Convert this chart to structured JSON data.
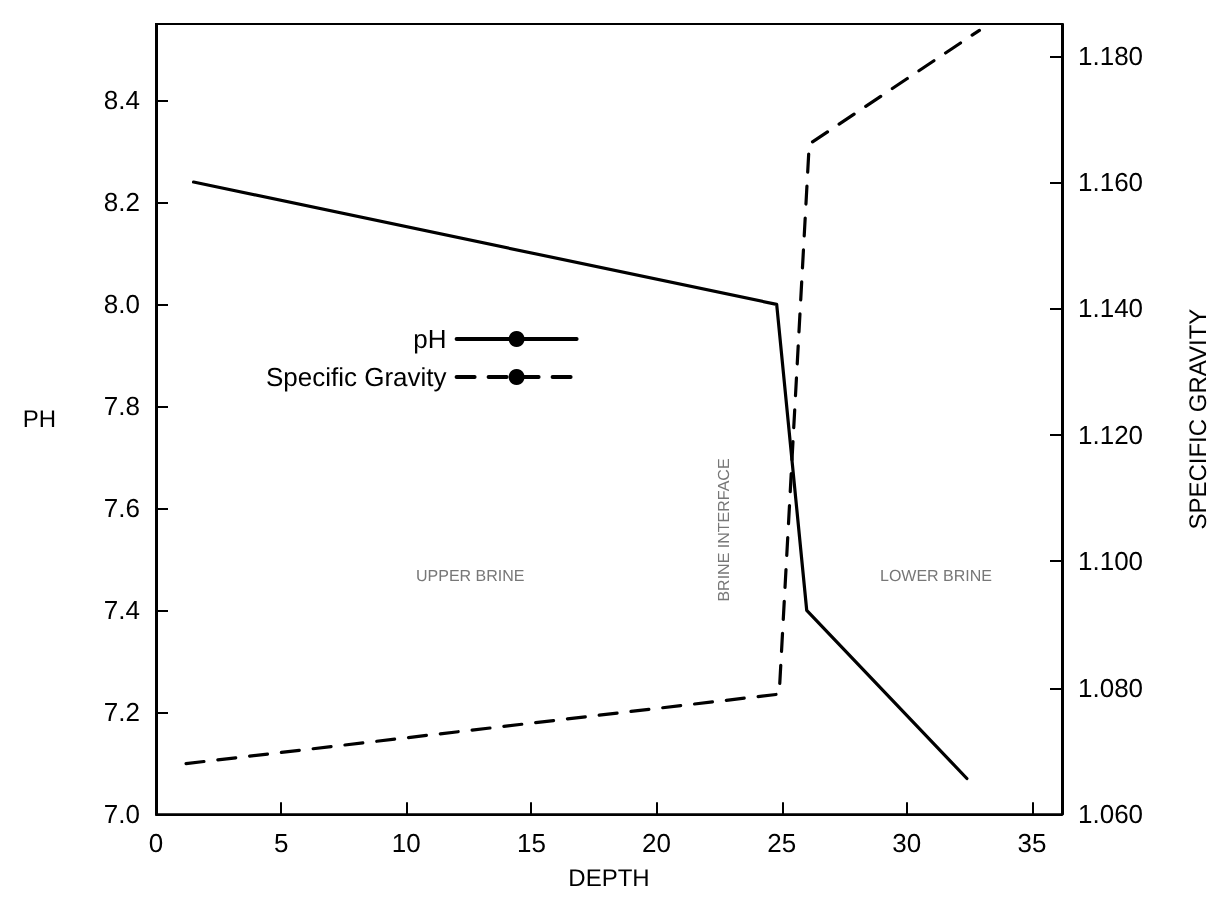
{
  "chart_data": {
    "type": "line",
    "xlabel": "DEPTH",
    "ylabel": "PH",
    "y2label": "SPECIFIC GRAVITY",
    "xlim": [
      0,
      36.2
    ],
    "xticks": [
      0,
      5,
      10,
      15,
      20,
      25,
      30,
      35
    ],
    "ylim": [
      7.0,
      8.55
    ],
    "yticks": [
      {
        "value": 7.0,
        "label": "7.0"
      },
      {
        "value": 7.2,
        "label": "7.2"
      },
      {
        "value": 7.4,
        "label": "7.4"
      },
      {
        "value": 7.6,
        "label": "7.6"
      },
      {
        "value": 7.8,
        "label": "7.8"
      },
      {
        "value": 8.0,
        "label": "8.0"
      },
      {
        "value": 8.2,
        "label": "8.2"
      },
      {
        "value": 8.4,
        "label": "8.4"
      }
    ],
    "y2lim": [
      1.06,
      1.185
    ],
    "y2ticks": [
      {
        "value": 1.06,
        "label": "1.060"
      },
      {
        "value": 1.08,
        "label": "1.080"
      },
      {
        "value": 1.1,
        "label": "1.100"
      },
      {
        "value": 1.12,
        "label": "1.120"
      },
      {
        "value": 1.14,
        "label": "1.140"
      },
      {
        "value": 1.16,
        "label": "1.160"
      },
      {
        "value": 1.18,
        "label": "1.180"
      }
    ],
    "series": [
      {
        "name": "pH",
        "color": "#000000",
        "x": [
          1.5,
          24.8,
          26.0,
          32.4
        ],
        "values": [
          8.24,
          8.0,
          7.4,
          7.07
        ],
        "line_style": "solid"
      },
      {
        "name": "Specific Gravity",
        "color": "#000000",
        "axis": "y2",
        "x": [
          1.2,
          24.9,
          26.1,
          32.9
        ],
        "values": [
          1.068,
          1.079,
          1.166,
          1.184
        ],
        "line_style": "dashed"
      }
    ],
    "annotations": [
      "UPPER BRINE",
      "BRINE INTERFACE",
      "LOWER BRINE"
    ],
    "legend": "left",
    "grid": false,
    "marker": "none"
  }
}
